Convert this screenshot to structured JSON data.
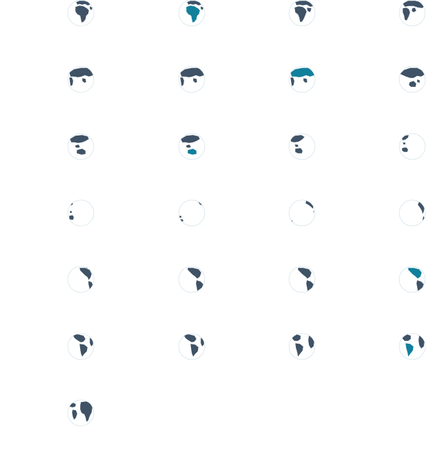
{
  "colors": {
    "land": "#3f5266",
    "highlight": "#12809c",
    "ocean": "#ffffff",
    "outline": "#d5e4ec"
  },
  "globes": [
    {
      "icon": "globe-europe-africa-icon",
      "view": "africa",
      "highlight": ""
    },
    {
      "icon": "globe-africa-highlighted-icon",
      "view": "africa",
      "highlight": "africa"
    },
    {
      "icon": "globe-europe-africa-asia-icon",
      "view": "africa-east",
      "highlight": ""
    },
    {
      "icon": "globe-europe-asia-icon",
      "view": "eurasia",
      "highlight": ""
    },
    {
      "icon": "globe-asia-icon",
      "view": "asia",
      "highlight": ""
    },
    {
      "icon": "globe-asia-icon",
      "view": "asia",
      "highlight": ""
    },
    {
      "icon": "globe-asia-highlighted-icon",
      "view": "asia",
      "highlight": "asia"
    },
    {
      "icon": "globe-asia-oceania-icon",
      "view": "asia-east",
      "highlight": ""
    },
    {
      "icon": "globe-asia-australia-icon",
      "view": "oceania",
      "highlight": ""
    },
    {
      "icon": "globe-australia-highlighted-icon",
      "view": "oceania",
      "highlight": "australia"
    },
    {
      "icon": "globe-australia-icon",
      "view": "oceania-east",
      "highlight": ""
    },
    {
      "icon": "globe-pacific-australia-icon",
      "view": "pacific-west",
      "highlight": ""
    },
    {
      "icon": "globe-pacific-icon",
      "view": "pacific",
      "highlight": ""
    },
    {
      "icon": "globe-pacific-icon",
      "view": "pacific-mid",
      "highlight": ""
    },
    {
      "icon": "globe-pacific-icon",
      "view": "pacific-east",
      "highlight": ""
    },
    {
      "icon": "globe-pacific-americas-icon",
      "view": "pacific-americas",
      "highlight": ""
    },
    {
      "icon": "globe-americas-icon",
      "view": "americas-west",
      "highlight": ""
    },
    {
      "icon": "globe-americas-icon",
      "view": "americas",
      "highlight": ""
    },
    {
      "icon": "globe-americas-icon",
      "view": "americas",
      "highlight": ""
    },
    {
      "icon": "globe-north-america-highlighted-icon",
      "view": "americas",
      "highlight": "north-america"
    },
    {
      "icon": "globe-americas-atlantic-icon",
      "view": "atlantic-west",
      "highlight": ""
    },
    {
      "icon": "globe-americas-atlantic-icon",
      "view": "atlantic-west",
      "highlight": ""
    },
    {
      "icon": "globe-atlantic-icon",
      "view": "atlantic",
      "highlight": ""
    },
    {
      "icon": "globe-south-america-highlighted-icon",
      "view": "atlantic",
      "highlight": "south-america"
    },
    {
      "icon": "globe-atlantic-africa-icon",
      "view": "atlantic-east",
      "highlight": ""
    }
  ]
}
